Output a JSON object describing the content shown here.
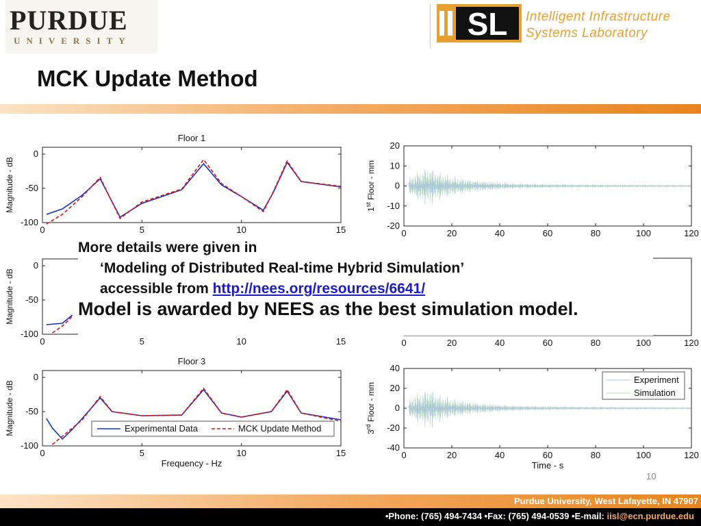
{
  "header": {
    "purdue_word": "PURDUE",
    "purdue_univ": "UNIVERSITY",
    "iisl_logo_letters": "SL",
    "iisl_line1": "Intelligent Infrastructure",
    "iisl_line2": "Systems Laboratory"
  },
  "slide": {
    "title": "MCK Update Method",
    "page_number": "10"
  },
  "overlay": {
    "line1": "More details were given in",
    "line2": "‘Modeling of Distributed Real-time Hybrid Simulation’",
    "line3_prefix": "accessible from ",
    "line3_link": "http://nees.org/resources/6641/",
    "line4": "Model is awarded by NEES as the best simulation model."
  },
  "footer": {
    "address": "Purdue University, West Lafayette, IN 47907",
    "contact_prefix": "•Phone: (765) 494-7434 •Fax: (765) 494-0539 •E-mail: ",
    "email": "iisl@ecn.purdue.edu"
  },
  "colors": {
    "accent_orange": "#e8841e",
    "experimental_blue": "#1030d0",
    "mck_red": "#e01010",
    "experiment_ts": "#aac4dd",
    "simulation_ts": "#a8dca8"
  },
  "chart_data": [
    {
      "type": "line",
      "title": "Floor 1",
      "xlabel": "",
      "ylabel": "Magnitude - dB",
      "xlim": [
        0,
        15
      ],
      "ylim": [
        -100,
        10
      ],
      "xticks": [
        "0",
        "5",
        "10",
        "15"
      ],
      "yticks": [
        "0",
        "-50",
        "-100"
      ],
      "peaks_hz": [
        2.9,
        8.1,
        12.3
      ],
      "valleys_hz": [
        3.9,
        11.1
      ],
      "series": [
        {
          "name": "Experimental Data",
          "values": [
            [
              0.2,
              -88
            ],
            [
              1,
              -80
            ],
            [
              2,
              -60
            ],
            [
              2.9,
              -36
            ],
            [
              3.9,
              -92
            ],
            [
              5,
              -72
            ],
            [
              7,
              -52
            ],
            [
              8.1,
              -14
            ],
            [
              9,
              -45
            ],
            [
              10,
              -62
            ],
            [
              11.1,
              -82
            ],
            [
              11.6,
              -56
            ],
            [
              12.3,
              -12
            ],
            [
              13,
              -40
            ],
            [
              15,
              -48
            ]
          ]
        },
        {
          "name": "MCK Update Method",
          "values": [
            [
              0.2,
              -102
            ],
            [
              1,
              -88
            ],
            [
              2,
              -62
            ],
            [
              2.9,
              -34
            ],
            [
              3.9,
              -94
            ],
            [
              5,
              -70
            ],
            [
              7,
              -51
            ],
            [
              8.1,
              -8
            ],
            [
              9,
              -43
            ],
            [
              10,
              -62
            ],
            [
              11.1,
              -84
            ],
            [
              11.6,
              -55
            ],
            [
              12.3,
              -10
            ],
            [
              13,
              -40
            ],
            [
              15,
              -47
            ]
          ]
        }
      ]
    },
    {
      "type": "line",
      "title": "",
      "xlabel": "",
      "ylabel": "Magnitude - dB",
      "xlim": [
        0,
        15
      ],
      "ylim": [
        -100,
        10
      ],
      "xticks": [
        "0",
        "5",
        "10",
        "15"
      ],
      "yticks": [
        "0",
        "-50",
        "-100"
      ],
      "series": [
        {
          "name": "Experimental Data",
          "values": [
            [
              0.2,
              -86
            ],
            [
              1,
              -84
            ],
            [
              1.5,
              -72
            ]
          ]
        },
        {
          "name": "MCK Update Method",
          "values": [
            [
              0.5,
              -98
            ],
            [
              1,
              -88
            ],
            [
              1.5,
              -74
            ]
          ]
        }
      ]
    },
    {
      "type": "line",
      "title": "Floor 3",
      "xlabel": "Frequency - Hz",
      "ylabel": "Magnitude - dB",
      "xlim": [
        0,
        15
      ],
      "ylim": [
        -100,
        10
      ],
      "xticks": [
        "0",
        "5",
        "10",
        "15"
      ],
      "yticks": [
        "0",
        "-50",
        "-100"
      ],
      "legend": "bottom-right",
      "series": [
        {
          "name": "Experimental Data",
          "values": [
            [
              0.2,
              -60
            ],
            [
              0.5,
              -74
            ],
            [
              1,
              -90
            ],
            [
              1.5,
              -76
            ],
            [
              2,
              -60
            ],
            [
              2.9,
              -30
            ],
            [
              3.5,
              -50
            ],
            [
              5,
              -56
            ],
            [
              7,
              -55
            ],
            [
              8.1,
              -18
            ],
            [
              9,
              -52
            ],
            [
              10,
              -58
            ],
            [
              11.5,
              -50
            ],
            [
              12.3,
              -20
            ],
            [
              13,
              -52
            ],
            [
              15,
              -62
            ]
          ]
        },
        {
          "name": "MCK Update Method",
          "values": [
            [
              0.5,
              -98
            ],
            [
              1,
              -86
            ],
            [
              2,
              -62
            ],
            [
              2.9,
              -28
            ],
            [
              3.5,
              -50
            ],
            [
              5,
              -56
            ],
            [
              7,
              -55
            ],
            [
              8.1,
              -16
            ],
            [
              9,
              -52
            ],
            [
              10,
              -58
            ],
            [
              11.5,
              -50
            ],
            [
              12.3,
              -18
            ],
            [
              13,
              -52
            ],
            [
              15,
              -64
            ]
          ]
        }
      ]
    },
    {
      "type": "line",
      "title": "",
      "xlabel": "",
      "ylabel": "1st Floor - mm",
      "ylabel_main": "1",
      "ylabel_sup": "st",
      "ylabel_rest": " Floor - mm",
      "xlim": [
        0,
        120
      ],
      "ylim": [
        -20,
        20
      ],
      "xticks": [
        "0",
        "20",
        "40",
        "60",
        "80",
        "100",
        "120"
      ],
      "yticks": [
        "20",
        "10",
        "0",
        "-10",
        "-20"
      ],
      "envelope": [
        [
          2,
          4
        ],
        [
          5,
          7
        ],
        [
          8,
          9
        ],
        [
          11,
          10
        ],
        [
          13,
          8
        ],
        [
          20,
          5
        ],
        [
          30,
          3
        ],
        [
          45,
          1.5
        ],
        [
          60,
          1
        ],
        [
          90,
          0.6
        ],
        [
          120,
          0.4
        ]
      ],
      "series": [
        {
          "name": "Experiment"
        },
        {
          "name": "Simulation"
        }
      ]
    },
    {
      "type": "line",
      "title": "",
      "xlabel": "",
      "ylabel": "",
      "xlim": [
        0,
        120
      ],
      "ylim": [
        -20,
        20
      ],
      "xticks": [
        "0",
        "20",
        "40",
        "60",
        "80",
        "100",
        "120"
      ],
      "yticks": []
    },
    {
      "type": "line",
      "title": "",
      "xlabel": "Time - s",
      "ylabel": "3rd Floor - mm",
      "ylabel_main": "3",
      "ylabel_sup": "rd",
      "ylabel_rest": " Floor - mm",
      "xlim": [
        0,
        120
      ],
      "ylim": [
        -40,
        40
      ],
      "xticks": [
        "0",
        "20",
        "40",
        "60",
        "80",
        "100",
        "120"
      ],
      "yticks": [
        "40",
        "20",
        "0",
        "-20",
        "-40"
      ],
      "legend": "top-right",
      "envelope": [
        [
          2,
          8
        ],
        [
          5,
          15
        ],
        [
          8,
          18
        ],
        [
          11,
          22
        ],
        [
          13,
          16
        ],
        [
          20,
          10
        ],
        [
          30,
          6
        ],
        [
          45,
          3
        ],
        [
          60,
          2
        ],
        [
          90,
          1.2
        ],
        [
          120,
          0.8
        ]
      ],
      "series": [
        {
          "name": "Experiment"
        },
        {
          "name": "Simulation"
        }
      ]
    }
  ]
}
